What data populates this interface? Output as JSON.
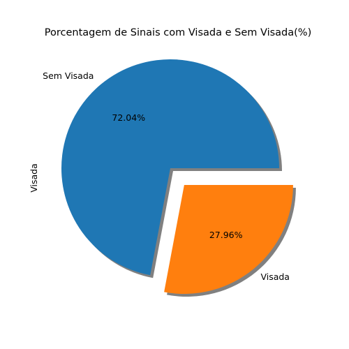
{
  "chart_data": {
    "type": "pie",
    "title": "Porcentagem de Sinais com Visada e Sem Visada(%)",
    "ylabel": "Visada",
    "slices": [
      {
        "label": "Sem Visada",
        "value": 72.04,
        "pct_label": "72.04%",
        "color": "#1f77b4",
        "explode": false
      },
      {
        "label": "Visada",
        "value": 27.96,
        "pct_label": "27.96%",
        "color": "#ff7f0e",
        "explode": true
      }
    ],
    "start_angle_deg": 0,
    "counterclock": true,
    "shadow": true,
    "shadow_color": "#808080"
  }
}
